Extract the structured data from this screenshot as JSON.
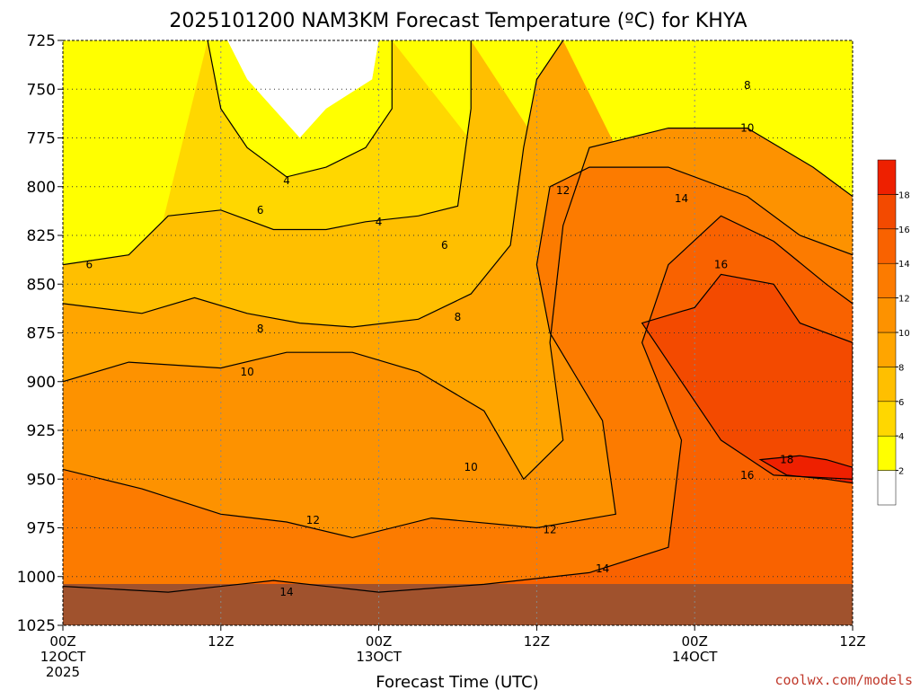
{
  "chart_data": {
    "type": "heatmap",
    "title": "2025101200 NAM3KM Forecast Temperature (ºC) for KHYA",
    "xlabel": "Forecast Time (UTC)",
    "credit": "coolwx.com/models",
    "y_axis": {
      "ticks": [
        "725",
        "750",
        "775",
        "800",
        "825",
        "850",
        "875",
        "900",
        "925",
        "950",
        "975",
        "1000",
        "1025"
      ],
      "ylim": [
        725,
        1025
      ],
      "inverted": true
    },
    "x_axis": {
      "ticks": [
        {
          "label": "00Z",
          "sub": "12OCT",
          "sub2": "2025"
        },
        {
          "label": "12Z",
          "sub": "",
          "sub2": ""
        },
        {
          "label": "00Z",
          "sub": "13OCT",
          "sub2": ""
        },
        {
          "label": "12Z",
          "sub": "",
          "sub2": ""
        },
        {
          "label": "00Z",
          "sub": "14OCT",
          "sub2": ""
        },
        {
          "label": "12Z",
          "sub": "",
          "sub2": ""
        }
      ],
      "xlim_hours": [
        0,
        60
      ]
    },
    "grid": true,
    "colorbar": {
      "placement": "right",
      "levels": [
        0,
        2,
        4,
        6,
        8,
        10,
        12,
        14,
        16,
        18,
        20
      ],
      "labels": [
        "2",
        "4",
        "6",
        "8",
        "10",
        "12",
        "14",
        "16",
        "18"
      ],
      "colors": [
        "#ffffff",
        "#ffff00",
        "#ffd700",
        "#ffbf00",
        "#ffa500",
        "#fd9200",
        "#fc7b00",
        "#f96200",
        "#f34a00",
        "#ee2000"
      ]
    },
    "contours": [
      {
        "level": 4,
        "path": [
          [
            11,
            725
          ],
          [
            12,
            760
          ],
          [
            14,
            780
          ],
          [
            17,
            795
          ],
          [
            20,
            790
          ],
          [
            23,
            780
          ],
          [
            25,
            760
          ],
          [
            25,
            725
          ]
        ]
      },
      {
        "level": 6,
        "path": [
          [
            0,
            840
          ],
          [
            5,
            835
          ],
          [
            8,
            815
          ],
          [
            12,
            812
          ],
          [
            16,
            822
          ],
          [
            20,
            822
          ],
          [
            23,
            818
          ],
          [
            27,
            815
          ],
          [
            30,
            810
          ],
          [
            31,
            760
          ],
          [
            31,
            725
          ]
        ]
      },
      {
        "level": 8,
        "path": [
          [
            0,
            860
          ],
          [
            6,
            865
          ],
          [
            10,
            857
          ],
          [
            14,
            865
          ],
          [
            18,
            870
          ],
          [
            22,
            872
          ],
          [
            27,
            868
          ],
          [
            31,
            855
          ],
          [
            34,
            830
          ],
          [
            35,
            780
          ],
          [
            36,
            745
          ],
          [
            38,
            725
          ]
        ]
      },
      {
        "level": 10,
        "path": [
          [
            0,
            900
          ],
          [
            5,
            890
          ],
          [
            12,
            893
          ],
          [
            17,
            885
          ],
          [
            22,
            885
          ],
          [
            27,
            895
          ],
          [
            32,
            915
          ],
          [
            35,
            950
          ],
          [
            38,
            930
          ],
          [
            37,
            880
          ],
          [
            38,
            820
          ],
          [
            40,
            780
          ],
          [
            46,
            770
          ],
          [
            52,
            770
          ],
          [
            57,
            790
          ],
          [
            60,
            805
          ]
        ]
      },
      {
        "level": 12,
        "path": [
          [
            0,
            945
          ],
          [
            6,
            955
          ],
          [
            12,
            968
          ],
          [
            17,
            972
          ],
          [
            22,
            980
          ],
          [
            28,
            970
          ],
          [
            36,
            975
          ],
          [
            42,
            968
          ],
          [
            41,
            920
          ],
          [
            37,
            875
          ],
          [
            36,
            840
          ],
          [
            37,
            800
          ],
          [
            40,
            790
          ],
          [
            46,
            790
          ],
          [
            52,
            805
          ],
          [
            56,
            825
          ],
          [
            60,
            835
          ]
        ]
      },
      {
        "level": 14,
        "path": [
          [
            0,
            1005
          ],
          [
            8,
            1008
          ],
          [
            16,
            1002
          ],
          [
            24,
            1008
          ],
          [
            32,
            1004
          ],
          [
            40,
            998
          ],
          [
            46,
            985
          ],
          [
            47,
            930
          ],
          [
            44,
            880
          ],
          [
            46,
            840
          ],
          [
            50,
            815
          ],
          [
            54,
            828
          ],
          [
            58,
            850
          ],
          [
            60,
            860
          ]
        ]
      },
      {
        "level": 16,
        "path": [
          [
            44,
            870
          ],
          [
            47,
            900
          ],
          [
            50,
            930
          ],
          [
            54,
            948
          ],
          [
            60,
            950
          ],
          [
            60,
            880
          ],
          [
            56,
            870
          ],
          [
            54,
            850
          ],
          [
            50,
            845
          ],
          [
            48,
            862
          ]
        ]
      },
      {
        "level": 18,
        "path": [
          [
            53,
            940
          ],
          [
            55,
            948
          ],
          [
            58,
            950
          ],
          [
            60,
            952
          ],
          [
            60,
            944
          ],
          [
            58,
            940
          ],
          [
            56,
            938
          ]
        ]
      }
    ],
    "contour_labels": [
      {
        "text": "4",
        "x": 17,
        "y": 797
      },
      {
        "text": "4",
        "x": 24,
        "y": 818
      },
      {
        "text": "6",
        "x": 2,
        "y": 840
      },
      {
        "text": "6",
        "x": 15,
        "y": 812
      },
      {
        "text": "6",
        "x": 29,
        "y": 830
      },
      {
        "text": "8",
        "x": 15,
        "y": 873
      },
      {
        "text": "8",
        "x": 30,
        "y": 867
      },
      {
        "text": "8",
        "x": 52,
        "y": 748
      },
      {
        "text": "10",
        "x": 14,
        "y": 895
      },
      {
        "text": "10",
        "x": 31,
        "y": 944
      },
      {
        "text": "10",
        "x": 52,
        "y": 770
      },
      {
        "text": "12",
        "x": 19,
        "y": 971
      },
      {
        "text": "12",
        "x": 38,
        "y": 802
      },
      {
        "text": "12",
        "x": 37,
        "y": 976
      },
      {
        "text": "14",
        "x": 17,
        "y": 1008
      },
      {
        "text": "14",
        "x": 41,
        "y": 996
      },
      {
        "text": "14",
        "x": 47,
        "y": 806
      },
      {
        "text": "16",
        "x": 50,
        "y": 840
      },
      {
        "text": "16",
        "x": 52,
        "y": 948
      },
      {
        "text": "18",
        "x": 55,
        "y": 940
      }
    ]
  }
}
